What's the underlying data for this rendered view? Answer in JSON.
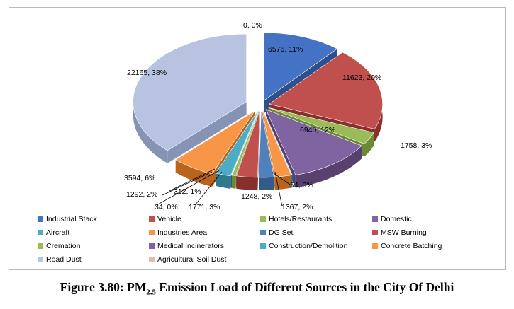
{
  "chart_data": {
    "type": "pie",
    "title": "",
    "slices": [
      {
        "name": "Industrial Stack",
        "value": 6576,
        "label": "6576, 11%",
        "color": "#4472c4",
        "dark": "#2e4f8a"
      },
      {
        "name": "Vehicle",
        "value": 11623,
        "label": "11623, 20%",
        "color": "#c0504d",
        "dark": "#872f2d"
      },
      {
        "name": "Hotels/Restaurants",
        "value": 1758,
        "label": "1758, 3%",
        "color": "#9bbb59",
        "dark": "#6b8a33"
      },
      {
        "name": "Domestic",
        "value": 6940,
        "label": "6940, 12%",
        "color": "#8064a2",
        "dark": "#58406f"
      },
      {
        "name": "Aircraft",
        "value": 54,
        "label": "54, 0%",
        "color": "#4bacc6",
        "dark": "#2f7a8e"
      },
      {
        "name": "Industries Area",
        "value": 1367,
        "label": "1367, 2%",
        "color": "#f79646",
        "dark": "#b8641d"
      },
      {
        "name": "DG Set",
        "value": 1248,
        "label": "1248, 2%",
        "color": "#4f81bd",
        "dark": "#325a8a"
      },
      {
        "name": "MSW Burning",
        "value": 1771,
        "label": "1771, 3%",
        "color": "#c0504d",
        "dark": "#872f2d"
      },
      {
        "name": "Cremation",
        "value": 312,
        "label": "312, 1%",
        "color": "#9bbb59",
        "dark": "#6b8a33"
      },
      {
        "name": "Medical Incinerators",
        "value": 34,
        "label": "34, 0%",
        "color": "#8064a2",
        "dark": "#58406f"
      },
      {
        "name": "Construction/Demolition",
        "value": 1292,
        "label": "1292, 2%",
        "color": "#4bacc6",
        "dark": "#2f7a8e"
      },
      {
        "name": "Concrete Batching",
        "value": 3594,
        "label": "3594, 6%",
        "color": "#f79646",
        "dark": "#b8641d"
      },
      {
        "name": "Road Dust",
        "value": 22165,
        "label": "22165, 38%",
        "color": "#b7c3e0",
        "dark": "#8593b5"
      },
      {
        "name": "Agricultural Soil Dust",
        "value": 0,
        "label": "0, 0%",
        "color": "#e6b9b8",
        "dark": "#b88a89"
      }
    ]
  },
  "legend": [
    {
      "label": "Industrial Stack",
      "color": "#4472c4"
    },
    {
      "label": "Vehicle",
      "color": "#c0504d"
    },
    {
      "label": "Hotels/Restaurants",
      "color": "#9bbb59"
    },
    {
      "label": "Domestic",
      "color": "#8064a2"
    },
    {
      "label": "Aircraft",
      "color": "#4bacc6"
    },
    {
      "label": "Industries Area",
      "color": "#f79646"
    },
    {
      "label": "DG Set",
      "color": "#4f81bd"
    },
    {
      "label": "MSW Burning",
      "color": "#c0504d"
    },
    {
      "label": "Cremation",
      "color": "#9bbb59"
    },
    {
      "label": "Medical Incinerators",
      "color": "#8064a2"
    },
    {
      "label": "Construction/Demolition",
      "color": "#4bacc6"
    },
    {
      "label": "Concrete Batching",
      "color": "#f79646"
    },
    {
      "label": "Road Dust",
      "color": "#b7c3e0"
    },
    {
      "label": "Agricultural Soil Dust",
      "color": "#e6b9b8"
    }
  ],
  "caption": {
    "prefix": "Figure 3.80: PM",
    "subscript": "2.5",
    "suffix": " Emission Load of Different Sources in the City Of Delhi"
  }
}
